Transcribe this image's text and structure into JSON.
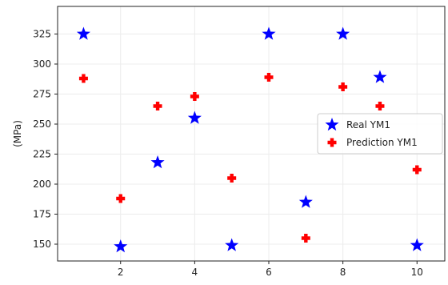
{
  "chart_data": {
    "type": "scatter",
    "title": "",
    "xlabel": "",
    "ylabel": "(MPa)",
    "xlim": [
      0.3,
      10.75
    ],
    "ylim": [
      136,
      348
    ],
    "xticks": [
      2,
      4,
      6,
      8,
      10
    ],
    "yticks": [
      150,
      175,
      200,
      225,
      250,
      275,
      300,
      325
    ],
    "grid": true,
    "legend_position": "center-right",
    "series": [
      {
        "name": "Real YM1",
        "marker": "star",
        "color": "#0000ff",
        "x": [
          1,
          2,
          3,
          4,
          5,
          6,
          7,
          8,
          9,
          10
        ],
        "y": [
          325,
          148,
          218,
          255,
          149,
          325,
          185,
          325,
          289,
          149
        ]
      },
      {
        "name": "Prediction YM1",
        "marker": "plus",
        "color": "#ff0000",
        "x": [
          1,
          2,
          3,
          4,
          5,
          6,
          7,
          8,
          9,
          10
        ],
        "y": [
          288,
          188,
          265,
          273,
          205,
          289,
          155,
          281,
          265,
          212
        ]
      }
    ]
  }
}
